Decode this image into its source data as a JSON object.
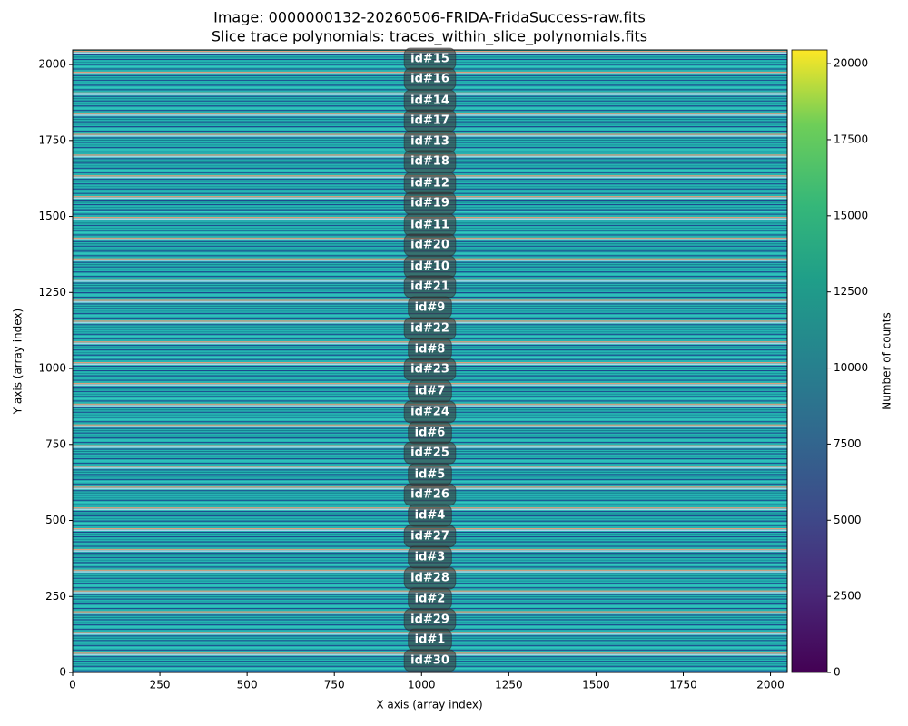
{
  "chart_data": {
    "type": "image",
    "title": "Image: 0000000132-20260506-FRIDA-FridaSuccess-raw.fits",
    "subtitle": "Slice trace polynomials: traces_within_slice_polynomials.fits",
    "x_label": "X axis (array index)",
    "y_label": "Y axis (array index)",
    "xlim": [
      0,
      2048
    ],
    "ylim": [
      0,
      2048
    ],
    "xticks": [
      0,
      250,
      500,
      750,
      1000,
      1250,
      1500,
      1750,
      2000
    ],
    "yticks": [
      0,
      250,
      500,
      750,
      1000,
      1250,
      1500,
      1750,
      2000
    ],
    "colorbar_label": "Number of counts",
    "clim": [
      0,
      20450
    ],
    "colorbar_ticks": [
      0,
      2500,
      5000,
      7500,
      10000,
      12500,
      15000,
      17500,
      20000
    ],
    "annotations": [
      {
        "text": "id#15",
        "x": 1024,
        "y": 2018
      },
      {
        "text": "id#16",
        "x": 1024,
        "y": 1952
      },
      {
        "text": "id#14",
        "x": 1024,
        "y": 1881
      },
      {
        "text": "id#17",
        "x": 1024,
        "y": 1815
      },
      {
        "text": "id#13",
        "x": 1024,
        "y": 1746
      },
      {
        "text": "id#18",
        "x": 1024,
        "y": 1681
      },
      {
        "text": "id#12",
        "x": 1024,
        "y": 1609
      },
      {
        "text": "id#19",
        "x": 1024,
        "y": 1543
      },
      {
        "text": "id#11",
        "x": 1024,
        "y": 1472
      },
      {
        "text": "id#20",
        "x": 1024,
        "y": 1406
      },
      {
        "text": "id#10",
        "x": 1024,
        "y": 1334
      },
      {
        "text": "id#21",
        "x": 1024,
        "y": 1269
      },
      {
        "text": "id#9",
        "x": 1024,
        "y": 1200
      },
      {
        "text": "id#22",
        "x": 1024,
        "y": 1131
      },
      {
        "text": "id#8",
        "x": 1024,
        "y": 1063
      },
      {
        "text": "id#23",
        "x": 1024,
        "y": 997
      },
      {
        "text": "id#7",
        "x": 1024,
        "y": 925
      },
      {
        "text": "id#24",
        "x": 1024,
        "y": 857
      },
      {
        "text": "id#6",
        "x": 1024,
        "y": 788
      },
      {
        "text": "id#25",
        "x": 1024,
        "y": 722
      },
      {
        "text": "id#5",
        "x": 1024,
        "y": 651
      },
      {
        "text": "id#26",
        "x": 1024,
        "y": 585
      },
      {
        "text": "id#4",
        "x": 1024,
        "y": 516
      },
      {
        "text": "id#27",
        "x": 1024,
        "y": 448
      },
      {
        "text": "id#3",
        "x": 1024,
        "y": 379
      },
      {
        "text": "id#28",
        "x": 1024,
        "y": 310
      },
      {
        "text": "id#2",
        "x": 1024,
        "y": 242
      },
      {
        "text": "id#29",
        "x": 1024,
        "y": 173
      },
      {
        "text": "id#1",
        "x": 1024,
        "y": 107
      },
      {
        "text": "id#30",
        "x": 1024,
        "y": 39
      }
    ]
  }
}
